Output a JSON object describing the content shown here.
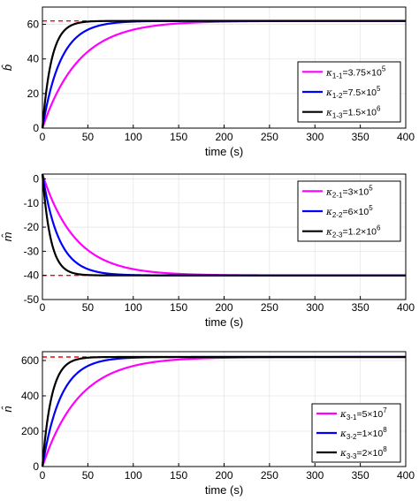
{
  "chart_data": [
    {
      "type": "line",
      "ylabel": "b̂",
      "xlabel": "time (s)",
      "xlim": [
        0,
        400
      ],
      "ylim": [
        0,
        70
      ],
      "xticks": [
        "0",
        "50",
        "100",
        "150",
        "200",
        "250",
        "300",
        "350",
        "400"
      ],
      "yticks": [
        "0",
        "20",
        "40",
        "60"
      ],
      "grid": true,
      "legend_position": "right",
      "reference": {
        "value": 62,
        "style": "dashed",
        "color": "#ff0000"
      },
      "series": [
        {
          "name": "κ1-1=3.75×10^5",
          "sub": "1-1",
          "val": "=3.75×10",
          "exp": "5",
          "color": "#ff00ff",
          "start": 0,
          "final": 62,
          "tau": 40
        },
        {
          "name": "κ1-2=7.5×10^5",
          "sub": "1-2",
          "val": "=7.5×10",
          "exp": "5",
          "color": "#0000ff",
          "start": 0,
          "final": 62,
          "tau": 20
        },
        {
          "name": "κ1-3=1.5×10^6",
          "sub": "1-3",
          "val": "=1.5×10",
          "exp": "6",
          "color": "#000000",
          "start": 0,
          "final": 62,
          "tau": 10
        }
      ]
    },
    {
      "type": "line",
      "ylabel": "m̂",
      "xlabel": "time (s)",
      "xlim": [
        0,
        400
      ],
      "ylim": [
        -50,
        2
      ],
      "xticks": [
        "0",
        "50",
        "100",
        "150",
        "200",
        "250",
        "300",
        "350",
        "400"
      ],
      "yticks": [
        "0",
        "-10",
        "-20",
        "-30",
        "-40",
        "-50"
      ],
      "grid": true,
      "legend_position": "top-right",
      "reference": {
        "value": -40,
        "style": "dashed",
        "color": "#ff0000"
      },
      "series": [
        {
          "name": "κ2-1=3×10^5",
          "sub": "2-1",
          "val": "=3×10",
          "exp": "5",
          "color": "#ff00ff",
          "start": 2,
          "final": -40,
          "tau": 36
        },
        {
          "name": "κ2-2=6×10^5",
          "sub": "2-2",
          "val": "=6×10",
          "exp": "5",
          "color": "#0000ff",
          "start": 2,
          "final": -40,
          "tau": 18
        },
        {
          "name": "κ2-3=1.2×10^6",
          "sub": "2-3",
          "val": "=1.2×10",
          "exp": "6",
          "color": "#000000",
          "start": 2,
          "final": -40,
          "tau": 9
        }
      ]
    },
    {
      "type": "line",
      "ylabel": "n̂",
      "xlabel": "time (s)",
      "xlim": [
        0,
        400
      ],
      "ylim": [
        0,
        650
      ],
      "xticks": [
        "0",
        "50",
        "100",
        "150",
        "200",
        "250",
        "300",
        "350",
        "400"
      ],
      "yticks": [
        "0",
        "200",
        "400",
        "600"
      ],
      "grid": true,
      "legend_position": "bottom-right",
      "reference": {
        "value": 620,
        "style": "dashed",
        "color": "#ff0000"
      },
      "series": [
        {
          "name": "κ3-1=5×10^7",
          "sub": "3-1",
          "val": "=5×10",
          "exp": "7",
          "color": "#ff00ff",
          "start": 0,
          "final": 620,
          "tau": 40
        },
        {
          "name": "κ3-2=1×10^8",
          "sub": "3-2",
          "val": "=1×10",
          "exp": "8",
          "color": "#0000ff",
          "start": 0,
          "final": 620,
          "tau": 20
        },
        {
          "name": "κ3-3=2×10^8",
          "sub": "3-3",
          "val": "=2×10",
          "exp": "8",
          "color": "#000000",
          "start": 0,
          "final": 620,
          "tau": 10
        }
      ]
    }
  ]
}
